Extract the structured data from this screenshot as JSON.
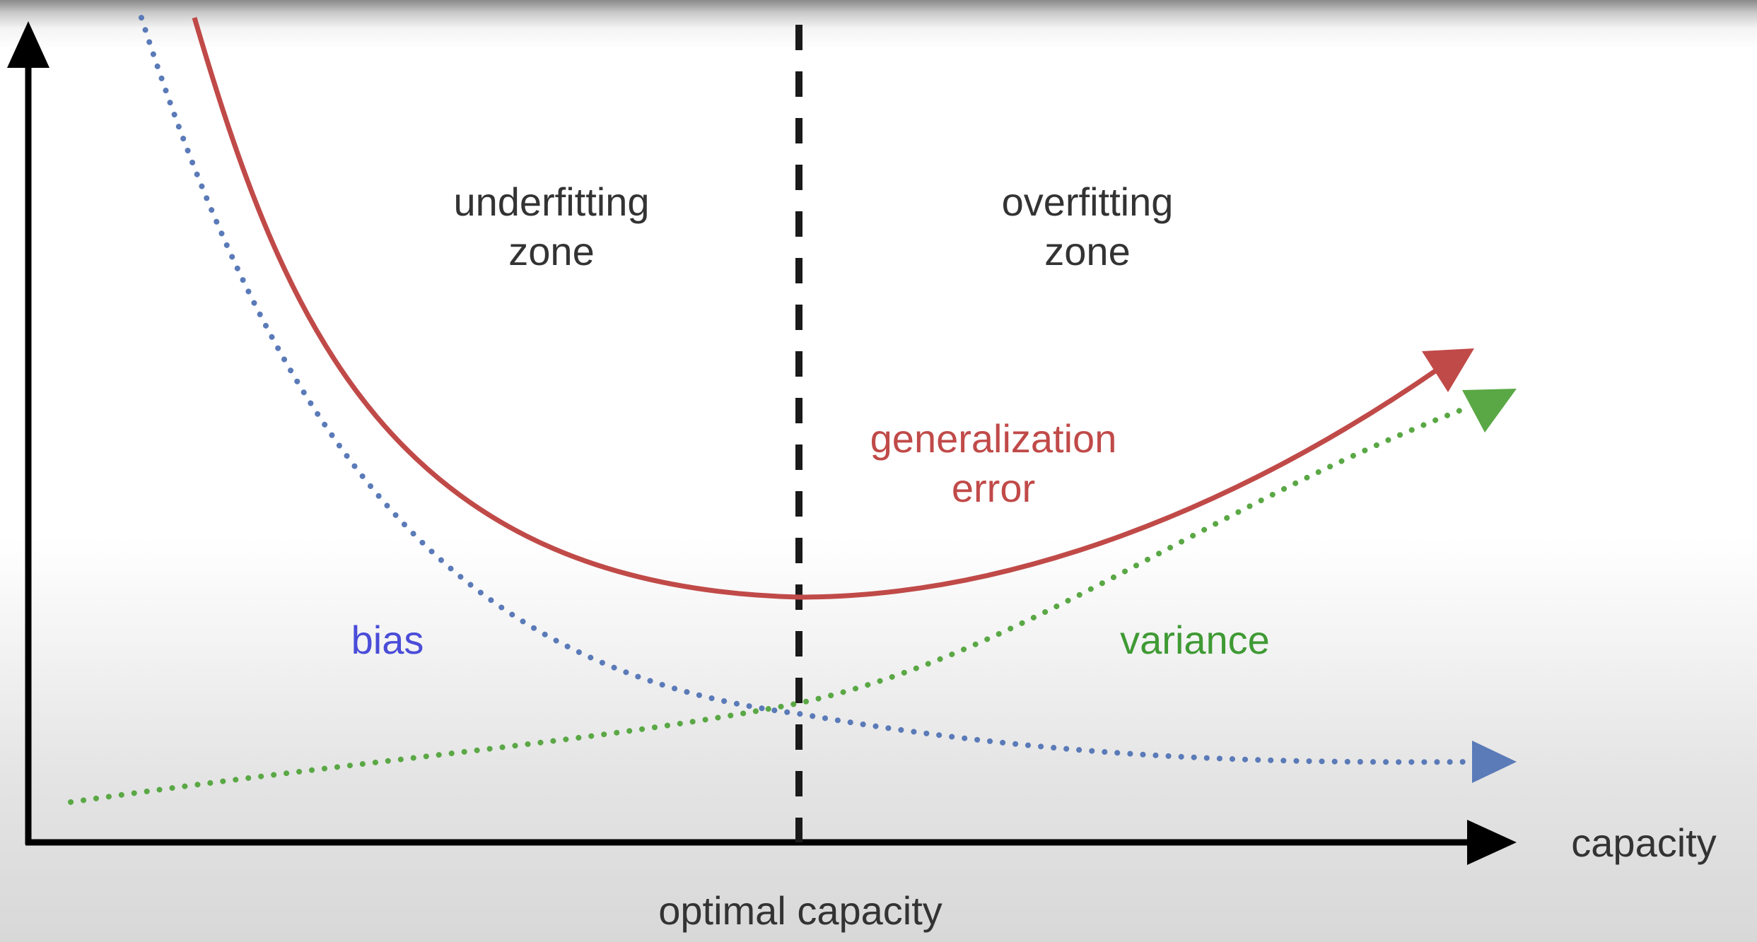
{
  "labels": {
    "underfitting_line1": "underfitting",
    "underfitting_line2": "zone",
    "overfitting_line1": "overfitting",
    "overfitting_line2": "zone",
    "generalization_line1": "generalization",
    "generalization_line2": "error",
    "bias": "bias",
    "variance": "variance",
    "x_axis": "capacity",
    "optimal": "optimal capacity"
  },
  "colors": {
    "axis": "#000000",
    "generalization_error": "#c04a48",
    "bias": "#5a7ab8",
    "variance": "#5aa845",
    "optimal_line": "#1a1a1a",
    "text": "#333333"
  },
  "curves": {
    "generalization_error": "u-shaped, minimum at optimal capacity, rising after",
    "bias": "decreasing with capacity",
    "variance": "increasing with capacity"
  }
}
